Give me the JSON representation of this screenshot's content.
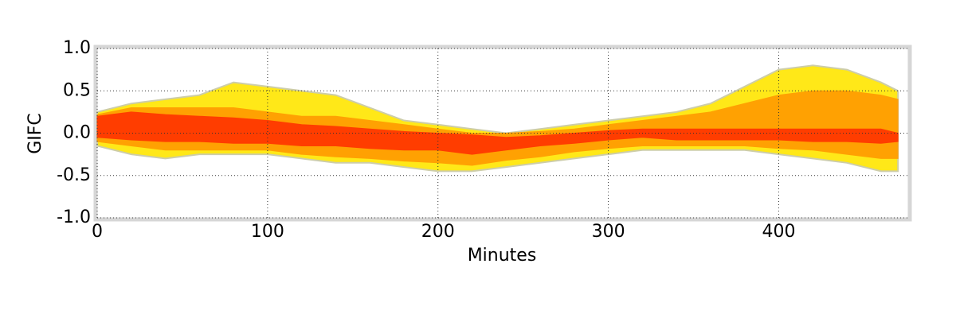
{
  "chart_data": {
    "type": "band",
    "x_label": "Minutes",
    "y_label": "GIFC",
    "x": [
      0,
      20,
      40,
      60,
      80,
      100,
      120,
      140,
      160,
      180,
      200,
      220,
      240,
      260,
      280,
      300,
      320,
      340,
      360,
      380,
      400,
      420,
      440,
      460,
      470
    ],
    "series": [
      {
        "color": "#ffe600",
        "upper": [
          0.25,
          0.35,
          0.4,
          0.45,
          0.6,
          0.55,
          0.5,
          0.45,
          0.3,
          0.15,
          0.1,
          0.05,
          0.0,
          0.05,
          0.1,
          0.15,
          0.2,
          0.25,
          0.35,
          0.55,
          0.75,
          0.8,
          0.75,
          0.6,
          0.5
        ],
        "lower": [
          -0.15,
          -0.25,
          -0.3,
          -0.25,
          -0.25,
          -0.25,
          -0.3,
          -0.35,
          -0.35,
          -0.4,
          -0.45,
          -0.45,
          -0.4,
          -0.35,
          -0.3,
          -0.25,
          -0.2,
          -0.2,
          -0.2,
          -0.2,
          -0.25,
          -0.3,
          -0.35,
          -0.45,
          -0.45
        ]
      },
      {
        "color": "#ff9a00",
        "upper": [
          0.22,
          0.3,
          0.3,
          0.3,
          0.3,
          0.25,
          0.2,
          0.2,
          0.15,
          0.1,
          0.05,
          0.0,
          0.0,
          0.02,
          0.05,
          0.1,
          0.15,
          0.2,
          0.25,
          0.35,
          0.45,
          0.5,
          0.5,
          0.45,
          0.4
        ],
        "lower": [
          -0.1,
          -0.15,
          -0.2,
          -0.2,
          -0.2,
          -0.2,
          -0.25,
          -0.28,
          -0.3,
          -0.33,
          -0.35,
          -0.38,
          -0.32,
          -0.28,
          -0.22,
          -0.18,
          -0.15,
          -0.15,
          -0.15,
          -0.15,
          -0.18,
          -0.2,
          -0.25,
          -0.3,
          -0.3
        ]
      },
      {
        "color": "#ff3300",
        "upper": [
          0.2,
          0.25,
          0.22,
          0.2,
          0.18,
          0.15,
          0.1,
          0.08,
          0.05,
          0.02,
          0.0,
          -0.02,
          -0.05,
          -0.03,
          0.0,
          0.03,
          0.05,
          0.05,
          0.05,
          0.05,
          0.05,
          0.05,
          0.05,
          0.05,
          0.0
        ],
        "lower": [
          -0.05,
          -0.08,
          -0.1,
          -0.1,
          -0.12,
          -0.12,
          -0.15,
          -0.15,
          -0.18,
          -0.2,
          -0.2,
          -0.25,
          -0.2,
          -0.15,
          -0.12,
          -0.08,
          -0.05,
          -0.08,
          -0.08,
          -0.08,
          -0.08,
          -0.1,
          -0.1,
          -0.12,
          -0.1
        ]
      }
    ],
    "xlim": [
      0,
      476
    ],
    "xticks": [
      0,
      100,
      200,
      300,
      400
    ],
    "ylim": [
      -1,
      1
    ],
    "yticks": [
      {
        "value": -1,
        "label": "-1.0"
      },
      {
        "value": -0.5,
        "label": "-0.5"
      },
      {
        "value": 0,
        "label": "0.0"
      },
      {
        "value": 0.5,
        "label": "0.5"
      },
      {
        "value": 1,
        "label": "1.0"
      }
    ],
    "grid": true
  }
}
